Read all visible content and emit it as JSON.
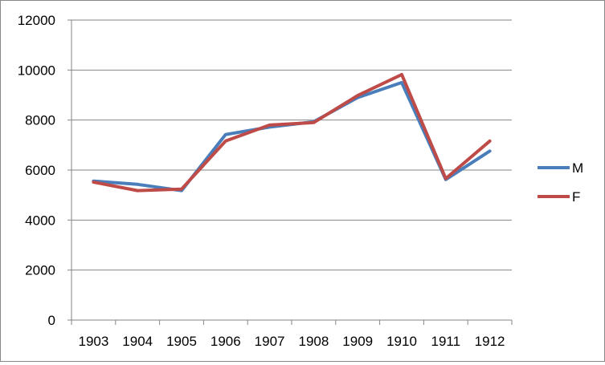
{
  "chart_data": {
    "type": "line",
    "categories": [
      "1903",
      "1904",
      "1905",
      "1906",
      "1907",
      "1908",
      "1909",
      "1910",
      "1911",
      "1912"
    ],
    "series": [
      {
        "name": "M",
        "color": "#4a7ebb",
        "values": [
          5560,
          5430,
          5180,
          7420,
          7720,
          7930,
          8900,
          9500,
          5620,
          6760
        ]
      },
      {
        "name": "F",
        "color": "#be4b48",
        "values": [
          5520,
          5180,
          5240,
          7160,
          7800,
          7900,
          8980,
          9820,
          5660,
          7160
        ]
      }
    ],
    "yticks": [
      "0",
      "2000",
      "4000",
      "6000",
      "8000",
      "10000",
      "12000"
    ],
    "ylim": [
      0,
      12000
    ],
    "grid": true,
    "legend_position": "right",
    "title": "",
    "xlabel": "",
    "ylabel": ""
  }
}
